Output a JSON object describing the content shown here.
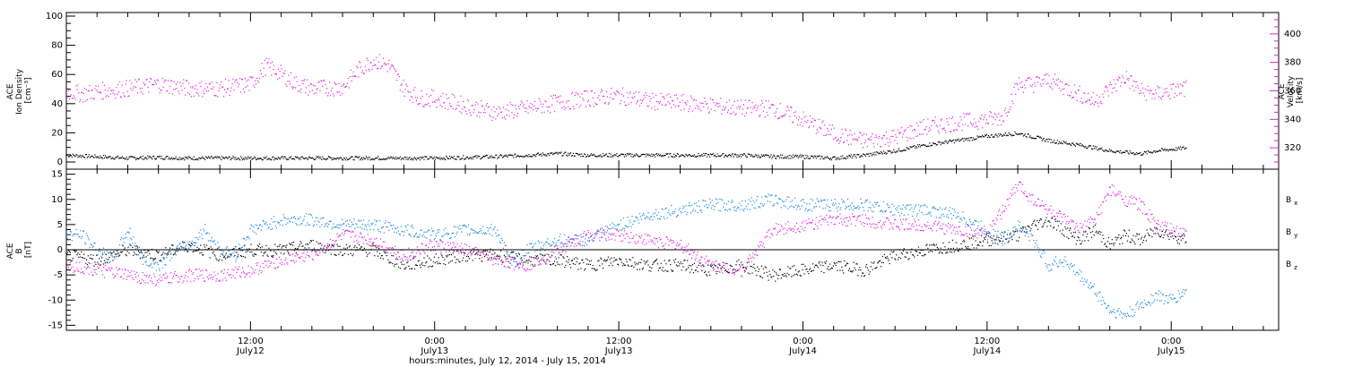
{
  "chart_data": [
    {
      "type": "scatter",
      "left_axis": {
        "label_lines": [
          "ACE",
          "Ion Density",
          "[cm⁻³]"
        ],
        "ticks": [
          "0",
          "20",
          "40",
          "60",
          "80",
          "100"
        ],
        "ylim": [
          0,
          100
        ]
      },
      "right_axis": {
        "label_lines": [
          "ACE",
          "Velocity",
          "[km/s]"
        ],
        "ticks": [
          "320",
          "340",
          "360",
          "380",
          "400"
        ],
        "ylim": [
          305,
          415
        ],
        "color": "#e020e0"
      },
      "series": [
        {
          "color": "#000000",
          "axis": "left",
          "points": [
            [
              0,
              5
            ],
            [
              2,
              4
            ],
            [
              4,
              3
            ],
            [
              6,
              3.5
            ],
            [
              8,
              3
            ],
            [
              10,
              3
            ],
            [
              12,
              3
            ],
            [
              14,
              3
            ],
            [
              16,
              3
            ],
            [
              18,
              3
            ],
            [
              20,
              3
            ],
            [
              22,
              3
            ],
            [
              24,
              3
            ],
            [
              26,
              3.5
            ],
            [
              28,
              4
            ],
            [
              30,
              5
            ],
            [
              32,
              6
            ],
            [
              34,
              5
            ],
            [
              36,
              5
            ],
            [
              38,
              5
            ],
            [
              40,
              5
            ],
            [
              42,
              5
            ],
            [
              44,
              5
            ],
            [
              46,
              4
            ],
            [
              48,
              4
            ],
            [
              50,
              3
            ],
            [
              52,
              5
            ],
            [
              54,
              8
            ],
            [
              56,
              12
            ],
            [
              58,
              15
            ],
            [
              60,
              18
            ],
            [
              62,
              20
            ],
            [
              64,
              15
            ],
            [
              66,
              12
            ],
            [
              68,
              8
            ],
            [
              70,
              6
            ],
            [
              71,
              8
            ],
            [
              72,
              9
            ],
            [
              73,
              10
            ]
          ]
        },
        {
          "color": "#e020e0",
          "axis": "right",
          "points": [
            [
              0,
              360
            ],
            [
              1,
              358
            ],
            [
              2,
              360
            ],
            [
              4,
              362
            ],
            [
              6,
              365
            ],
            [
              8,
              362
            ],
            [
              10,
              362
            ],
            [
              12,
              365
            ],
            [
              13,
              378
            ],
            [
              14,
              372
            ],
            [
              15,
              365
            ],
            [
              16,
              362
            ],
            [
              18,
              363
            ],
            [
              19,
              375
            ],
            [
              20,
              382
            ],
            [
              21,
              378
            ],
            [
              22,
              362
            ],
            [
              23,
              355
            ],
            [
              24,
              355
            ],
            [
              26,
              350
            ],
            [
              28,
              345
            ],
            [
              30,
              348
            ],
            [
              32,
              352
            ],
            [
              34,
              355
            ],
            [
              36,
              357
            ],
            [
              38,
              353
            ],
            [
              40,
              352
            ],
            [
              42,
              350
            ],
            [
              44,
              348
            ],
            [
              46,
              348
            ],
            [
              48,
              340
            ],
            [
              50,
              330
            ],
            [
              52,
              325
            ],
            [
              54,
              328
            ],
            [
              56,
              335
            ],
            [
              58,
              338
            ],
            [
              60,
              340
            ],
            [
              61,
              342
            ],
            [
              62,
              365
            ],
            [
              63,
              365
            ],
            [
              64,
              368
            ],
            [
              65,
              363
            ],
            [
              66,
              358
            ],
            [
              67,
              353
            ],
            [
              68,
              362
            ],
            [
              69,
              370
            ],
            [
              70,
              360
            ],
            [
              71,
              358
            ],
            [
              72,
              360
            ],
            [
              73,
              362
            ]
          ]
        }
      ]
    },
    {
      "type": "scatter",
      "left_axis": {
        "label_lines": [
          "ACE",
          "B",
          "[nT]"
        ],
        "ticks": [
          "-15",
          "-10",
          "-5",
          "0",
          "5",
          "10",
          "15"
        ],
        "ylim": [
          -16,
          16
        ]
      },
      "legend": [
        {
          "label": "Bx",
          "color": "#000000"
        },
        {
          "label": "By",
          "color": "#1a88e0"
        },
        {
          "label": "Bz",
          "color": "#e020e0"
        }
      ],
      "zero_line": true,
      "series": [
        {
          "color": "#000000",
          "points": [
            [
              0,
              -1
            ],
            [
              2,
              -2
            ],
            [
              4,
              0
            ],
            [
              6,
              -1
            ],
            [
              8,
              1
            ],
            [
              10,
              -1
            ],
            [
              12,
              0
            ],
            [
              14,
              0
            ],
            [
              16,
              1
            ],
            [
              18,
              0
            ],
            [
              20,
              0
            ],
            [
              22,
              -3
            ],
            [
              24,
              -2
            ],
            [
              26,
              -1
            ],
            [
              28,
              -1
            ],
            [
              30,
              -2
            ],
            [
              32,
              -2
            ],
            [
              34,
              -3
            ],
            [
              36,
              -2
            ],
            [
              38,
              -3
            ],
            [
              40,
              -3
            ],
            [
              42,
              -4
            ],
            [
              44,
              -3
            ],
            [
              46,
              -5
            ],
            [
              48,
              -4
            ],
            [
              50,
              -3
            ],
            [
              52,
              -4
            ],
            [
              54,
              -1
            ],
            [
              56,
              0
            ],
            [
              58,
              1
            ],
            [
              60,
              2
            ],
            [
              62,
              3
            ],
            [
              63,
              5
            ],
            [
              64,
              6
            ],
            [
              65,
              4
            ],
            [
              66,
              2
            ],
            [
              67,
              4
            ],
            [
              68,
              1
            ],
            [
              69,
              3
            ],
            [
              70,
              2
            ],
            [
              71,
              4
            ],
            [
              72,
              3
            ],
            [
              73,
              2
            ]
          ]
        },
        {
          "color": "#1a88e0",
          "points": [
            [
              0,
              3
            ],
            [
              1,
              3
            ],
            [
              2,
              0
            ],
            [
              3,
              -2
            ],
            [
              4,
              4
            ],
            [
              5,
              -2
            ],
            [
              6,
              -3
            ],
            [
              7,
              0
            ],
            [
              8,
              1
            ],
            [
              9,
              4
            ],
            [
              10,
              0
            ],
            [
              11,
              -1
            ],
            [
              12,
              4
            ],
            [
              13,
              5
            ],
            [
              14,
              6
            ],
            [
              16,
              6
            ],
            [
              18,
              5
            ],
            [
              20,
              5
            ],
            [
              22,
              4
            ],
            [
              24,
              3
            ],
            [
              26,
              4
            ],
            [
              28,
              4
            ],
            [
              29,
              -3
            ],
            [
              30,
              0
            ],
            [
              32,
              2
            ],
            [
              34,
              2
            ],
            [
              36,
              5
            ],
            [
              38,
              7
            ],
            [
              40,
              8
            ],
            [
              42,
              9
            ],
            [
              44,
              9
            ],
            [
              46,
              10
            ],
            [
              48,
              9
            ],
            [
              50,
              9
            ],
            [
              52,
              9
            ],
            [
              54,
              8
            ],
            [
              56,
              8
            ],
            [
              58,
              7
            ],
            [
              60,
              4
            ],
            [
              61,
              2
            ],
            [
              62,
              5
            ],
            [
              63,
              2
            ],
            [
              64,
              -3
            ],
            [
              65,
              -2
            ],
            [
              66,
              -5
            ],
            [
              67,
              -8
            ],
            [
              68,
              -12
            ],
            [
              69,
              -13
            ],
            [
              70,
              -11
            ],
            [
              71,
              -9
            ],
            [
              72,
              -10
            ],
            [
              73,
              -8
            ]
          ]
        },
        {
          "color": "#e020e0",
          "points": [
            [
              0,
              -3
            ],
            [
              2,
              -4
            ],
            [
              4,
              -5
            ],
            [
              6,
              -6
            ],
            [
              8,
              -5
            ],
            [
              10,
              -5
            ],
            [
              12,
              -4
            ],
            [
              14,
              -2
            ],
            [
              16,
              -1
            ],
            [
              18,
              3
            ],
            [
              20,
              2
            ],
            [
              22,
              -1
            ],
            [
              24,
              1
            ],
            [
              26,
              0
            ],
            [
              28,
              -2
            ],
            [
              30,
              -3
            ],
            [
              32,
              0
            ],
            [
              34,
              3
            ],
            [
              36,
              3
            ],
            [
              38,
              2
            ],
            [
              40,
              1
            ],
            [
              42,
              -3
            ],
            [
              44,
              -4
            ],
            [
              46,
              4
            ],
            [
              48,
              5
            ],
            [
              50,
              6
            ],
            [
              52,
              6
            ],
            [
              54,
              5
            ],
            [
              56,
              5
            ],
            [
              58,
              4
            ],
            [
              60,
              3
            ],
            [
              61,
              8
            ],
            [
              62,
              13
            ],
            [
              63,
              10
            ],
            [
              64,
              8
            ],
            [
              65,
              6
            ],
            [
              66,
              4
            ],
            [
              67,
              6
            ],
            [
              68,
              12
            ],
            [
              69,
              10
            ],
            [
              70,
              9
            ],
            [
              71,
              5
            ],
            [
              72,
              4
            ],
            [
              73,
              3
            ]
          ]
        }
      ],
      "x_ticks": [
        {
          "t": 12,
          "line1": "12:00",
          "line2": "July12"
        },
        {
          "t": 24,
          "line1": "0:00",
          "line2": "July13"
        },
        {
          "t": 36,
          "line1": "12:00",
          "line2": "July13"
        },
        {
          "t": 48,
          "line1": "0:00",
          "line2": "July14"
        },
        {
          "t": 60,
          "line1": "12:00",
          "line2": "July14"
        },
        {
          "t": 72,
          "line1": "0:00",
          "line2": "July15"
        }
      ],
      "xlim": [
        0,
        79
      ],
      "xlabel": "hours:minutes, July 12, 2014 - July 15, 2014"
    }
  ]
}
